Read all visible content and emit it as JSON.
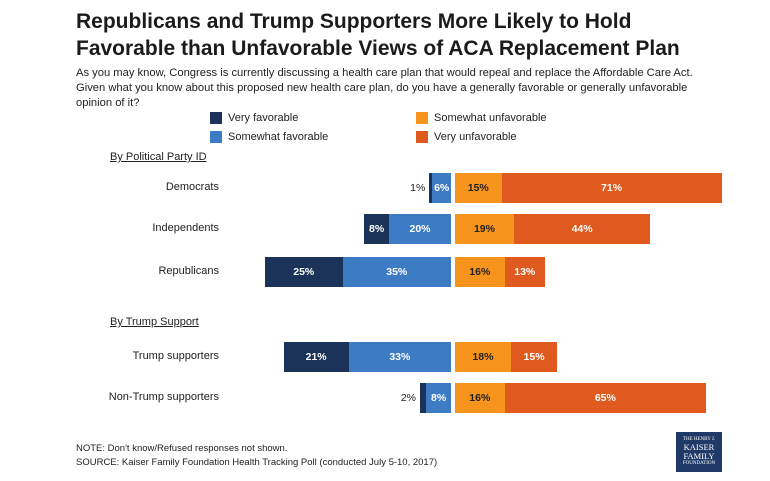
{
  "title": "Republicans and Trump Supporters More Likely to Hold Favorable than Unfavorable Views of ACA Replacement Plan",
  "subtitle": "As you may know, Congress is currently discussing a health care plan that would repeal and replace the Affordable Care Act. Given what you know about this proposed new health care plan, do you have a generally favorable or generally unfavorable opinion of it?",
  "colors": {
    "very_favorable": "#1b3358",
    "somewhat_favorable": "#3d7cc4",
    "somewhat_unfavorable": "#f7941d",
    "very_unfavorable": "#e05a1f"
  },
  "legend": {
    "very_favorable": "Very favorable",
    "somewhat_favorable": "Somewhat favorable",
    "somewhat_unfavorable": "Somewhat unfavorable",
    "very_unfavorable": "Very unfavorable"
  },
  "sections": {
    "party": "By Political Party ID",
    "trump": "By Trump Support"
  },
  "notes": {
    "note": "NOTE: Don't know/Refused responses not shown.",
    "source": "SOURCE: Kaiser Family Foundation Health Tracking Poll (conducted July 5-10, 2017)"
  },
  "logo": {
    "line1": "THE HENRY J.",
    "line2": "KAISER",
    "line3": "FAMILY",
    "line4": "FOUNDATION"
  },
  "chart_data": {
    "type": "bar",
    "orientation": "diverging-horizontal",
    "categories": [
      "Democrats",
      "Independents",
      "Republicans",
      "Trump supporters",
      "Non-Trump supporters"
    ],
    "series": [
      {
        "name": "Very favorable",
        "values": [
          1,
          8,
          25,
          21,
          2
        ]
      },
      {
        "name": "Somewhat favorable",
        "values": [
          6,
          20,
          35,
          33,
          8
        ]
      },
      {
        "name": "Somewhat unfavorable",
        "values": [
          15,
          19,
          16,
          18,
          16
        ]
      },
      {
        "name": "Very unfavorable",
        "values": [
          71,
          44,
          13,
          15,
          65
        ]
      }
    ],
    "labels": [
      [
        "1%",
        "6%",
        "15%",
        "71%"
      ],
      [
        "8%",
        "20%",
        "19%",
        "44%"
      ],
      [
        "25%",
        "35%",
        "16%",
        "13%"
      ],
      [
        "21%",
        "33%",
        "18%",
        "15%"
      ],
      [
        "2%",
        "8%",
        "16%",
        "65%"
      ]
    ]
  }
}
